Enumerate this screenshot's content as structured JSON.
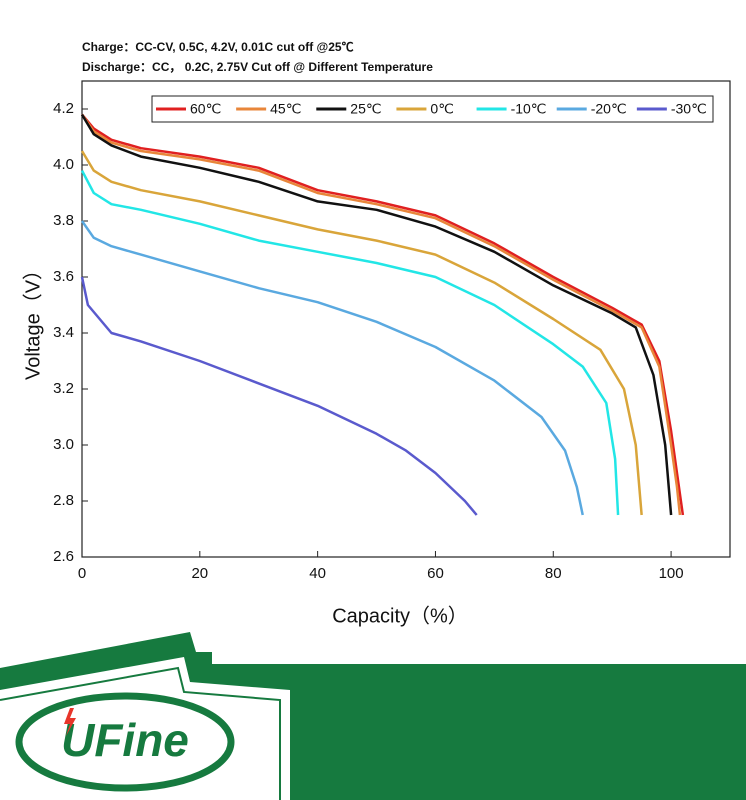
{
  "chart_data": {
    "type": "line",
    "subtitle_lines": [
      "Charge：CC-CV, 0.5C, 4.2V, 0.01C cut off @25℃",
      "Discharge：CC， 0.2C, 2.75V Cut off @ Different Temperature"
    ],
    "x_label": "Capacity（%）",
    "y_label": "Voltage（V）",
    "xlim": [
      0,
      110
    ],
    "ylim": [
      2.6,
      4.3
    ],
    "xticks": [
      0,
      20,
      40,
      60,
      80,
      100
    ],
    "yticks": [
      2.6,
      2.8,
      {
        "value": 3,
        "label": "3.0"
      },
      3.2,
      3.4,
      3.6,
      3.8,
      {
        "value": 4,
        "label": "4.0"
      },
      4.2
    ],
    "legend": "top-right",
    "series": [
      {
        "name": "60℃",
        "color": "#e02020",
        "x": [
          0,
          2,
          5,
          10,
          20,
          30,
          40,
          50,
          60,
          70,
          80,
          90,
          95,
          98,
          100,
          101,
          102
        ],
        "values": [
          4.18,
          4.13,
          4.09,
          4.06,
          4.03,
          3.99,
          3.91,
          3.87,
          3.82,
          3.72,
          3.6,
          3.49,
          3.43,
          3.3,
          3.05,
          2.9,
          2.75
        ]
      },
      {
        "name": "45℃",
        "color": "#e8863a",
        "x": [
          0,
          2,
          5,
          10,
          20,
          30,
          40,
          50,
          60,
          70,
          80,
          90,
          95,
          98,
          100,
          101,
          101.5
        ],
        "values": [
          4.18,
          4.12,
          4.08,
          4.05,
          4.02,
          3.98,
          3.9,
          3.86,
          3.81,
          3.71,
          3.59,
          3.48,
          3.42,
          3.28,
          3.0,
          2.85,
          2.75
        ]
      },
      {
        "name": "25℃",
        "color": "#111111",
        "x": [
          0,
          2,
          5,
          10,
          20,
          30,
          40,
          50,
          60,
          70,
          80,
          90,
          94,
          97,
          99,
          100
        ],
        "values": [
          4.18,
          4.11,
          4.07,
          4.03,
          3.99,
          3.94,
          3.87,
          3.84,
          3.78,
          3.69,
          3.57,
          3.47,
          3.42,
          3.25,
          3.0,
          2.75
        ]
      },
      {
        "name": "0℃",
        "color": "#d9a53a",
        "x": [
          0,
          2,
          5,
          10,
          20,
          30,
          40,
          50,
          60,
          70,
          80,
          88,
          92,
          94,
          95
        ],
        "values": [
          4.05,
          3.98,
          3.94,
          3.91,
          3.87,
          3.82,
          3.77,
          3.73,
          3.68,
          3.58,
          3.45,
          3.34,
          3.2,
          3.0,
          2.75
        ]
      },
      {
        "name": "-10℃",
        "color": "#22e6e6",
        "x": [
          0,
          2,
          5,
          10,
          20,
          30,
          40,
          50,
          60,
          70,
          80,
          85,
          89,
          90.5,
          91
        ],
        "values": [
          3.98,
          3.9,
          3.86,
          3.84,
          3.79,
          3.73,
          3.69,
          3.65,
          3.6,
          3.5,
          3.36,
          3.28,
          3.15,
          2.95,
          2.75
        ]
      },
      {
        "name": "-20℃",
        "color": "#5aa9e0",
        "x": [
          0,
          2,
          5,
          10,
          20,
          30,
          40,
          50,
          60,
          70,
          78,
          82,
          84,
          85
        ],
        "values": [
          3.8,
          3.74,
          3.71,
          3.68,
          3.62,
          3.56,
          3.51,
          3.44,
          3.35,
          3.23,
          3.1,
          2.98,
          2.85,
          2.75
        ]
      },
      {
        "name": "-30℃",
        "color": "#5a5acd",
        "x": [
          0,
          1,
          3,
          5,
          10,
          20,
          30,
          40,
          50,
          55,
          60,
          65,
          67
        ],
        "values": [
          3.6,
          3.5,
          3.45,
          3.4,
          3.37,
          3.3,
          3.22,
          3.14,
          3.04,
          2.98,
          2.9,
          2.8,
          2.75
        ]
      }
    ]
  },
  "logo": {
    "text": "UFine"
  }
}
